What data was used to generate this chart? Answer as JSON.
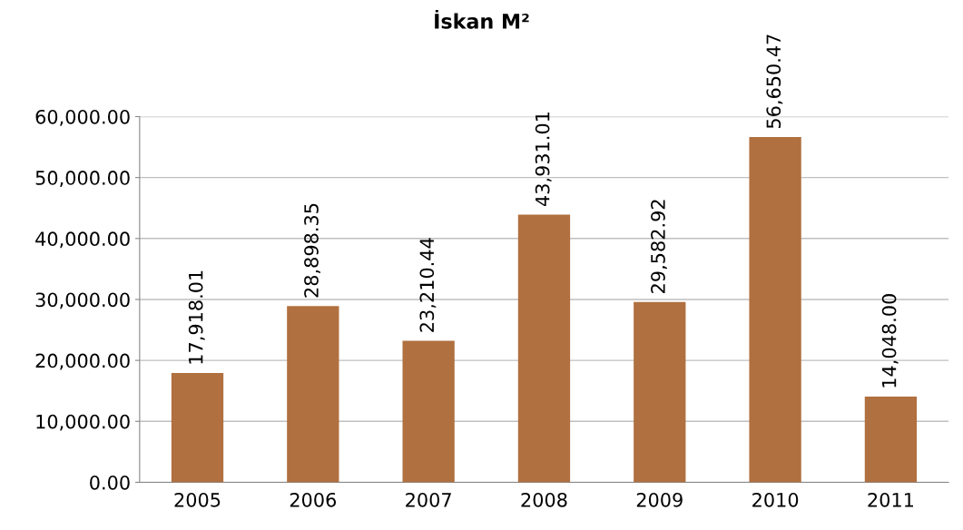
{
  "chart_data": {
    "type": "bar",
    "title": "İskan M²",
    "categories": [
      "2005",
      "2006",
      "2007",
      "2008",
      "2009",
      "2010",
      "2011"
    ],
    "values": [
      17918.01,
      28898.35,
      23210.44,
      43931.01,
      29582.92,
      56650.47,
      14048.0
    ],
    "value_labels": [
      "17,918.01",
      "28,898.35",
      "23,210.44",
      "43,931.01",
      "29,582.92",
      "56,650.47",
      "14,048.00"
    ],
    "color": "#b0703f",
    "ylim": [
      0,
      60000
    ],
    "yticks": [
      {
        "value": 0,
        "label": "0.00"
      },
      {
        "value": 10000,
        "label": "10,000.00"
      },
      {
        "value": 20000,
        "label": "20,000.00"
      },
      {
        "value": 30000,
        "label": "30,000.00"
      },
      {
        "value": 40000,
        "label": "40,000.00"
      },
      {
        "value": 50000,
        "label": "50,000.00"
      },
      {
        "value": 60000,
        "label": "60,000.00"
      }
    ],
    "grid": "y"
  }
}
